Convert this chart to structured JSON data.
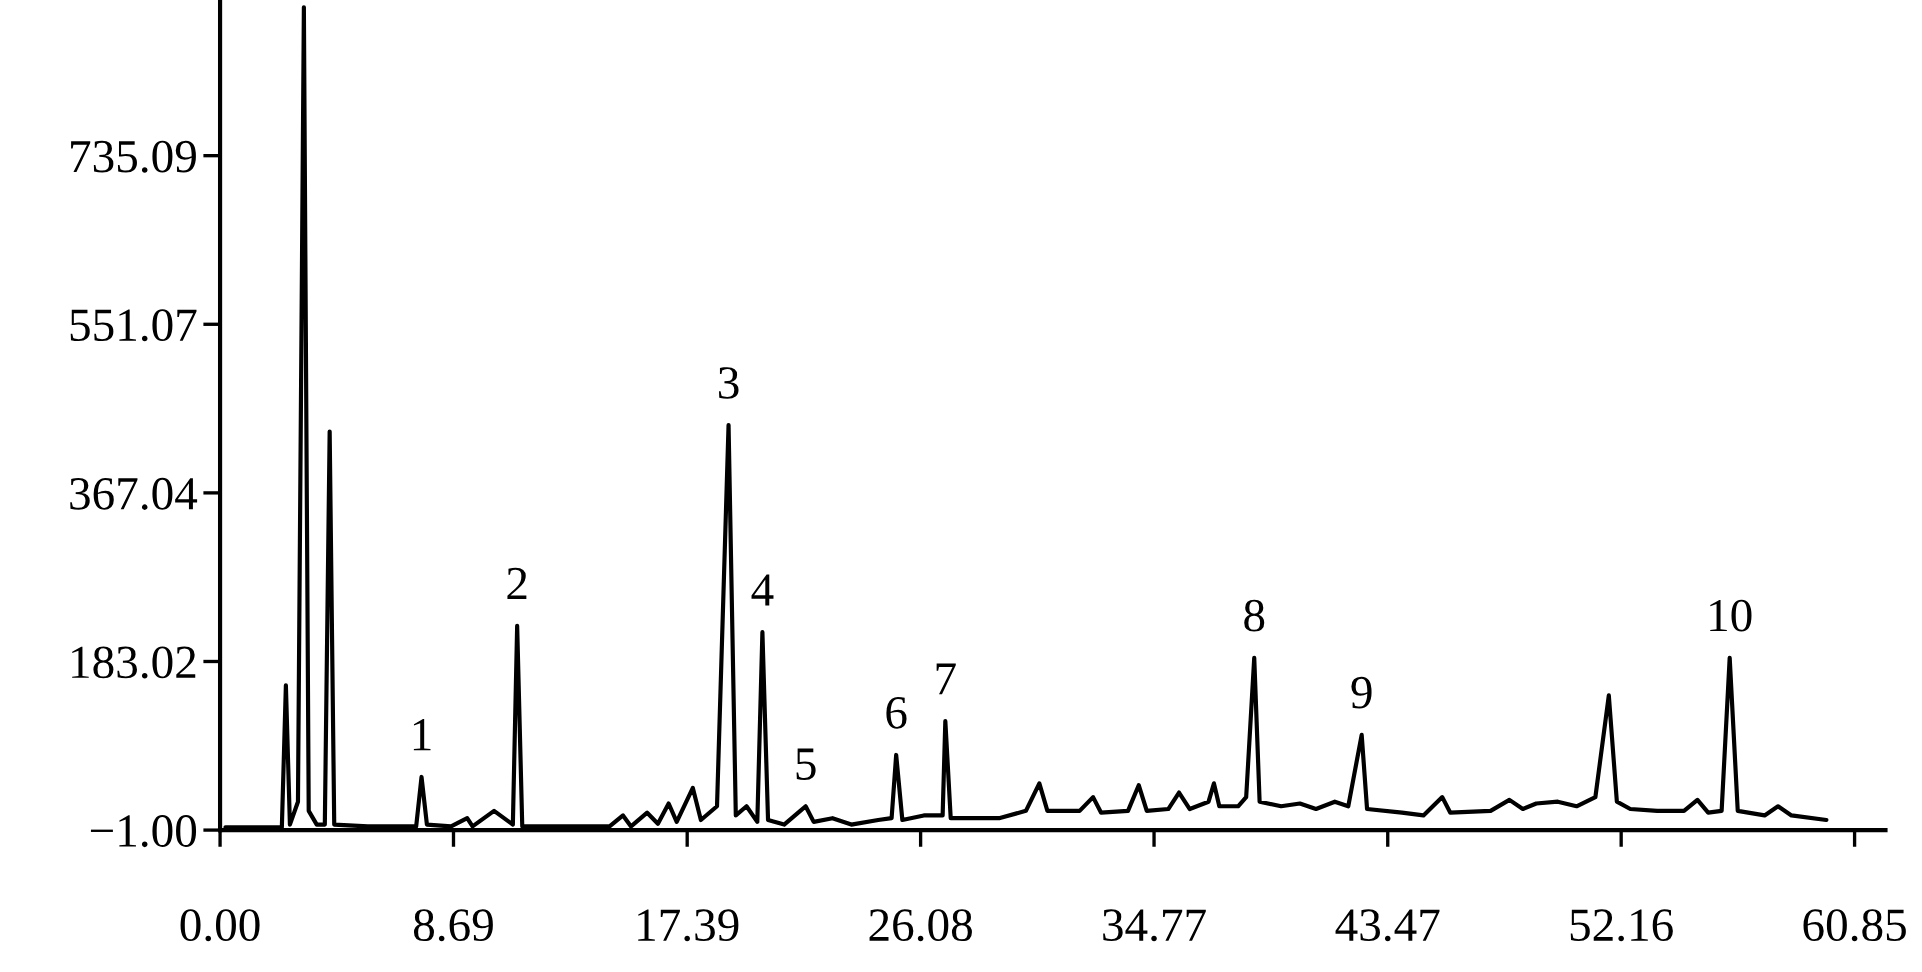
{
  "chart_data": {
    "type": "line",
    "series": [
      {
        "color": "#000000",
        "x": [
          0.2,
          2.3,
          2.45,
          2.6,
          2.9,
          3.12,
          3.3,
          3.6,
          3.9,
          4.08,
          4.25,
          5.5,
          7.3,
          7.5,
          7.7,
          8.6,
          9.2,
          9.4,
          10.2,
          10.9,
          11.06,
          11.25,
          14.5,
          15.0,
          15.3,
          15.9,
          16.3,
          16.7,
          17.0,
          17.6,
          17.9,
          18.5,
          18.93,
          19.2,
          19.6,
          20.0,
          20.19,
          20.4,
          21.0,
          21.6,
          21.8,
          22.1,
          22.8,
          23.5,
          24.5,
          25.0,
          25.17,
          25.4,
          26.2,
          26.9,
          27.0,
          27.2,
          29.0,
          30.0,
          30.5,
          30.8,
          32.0,
          32.5,
          32.8,
          33.8,
          34.2,
          34.5,
          35.3,
          35.7,
          36.1,
          36.8,
          37.0,
          37.2,
          37.9,
          38.2,
          38.5,
          38.7,
          39.5,
          40.2,
          40.8,
          41.5,
          42.0,
          42.5,
          42.7,
          44.0,
          44.8,
          45.5,
          45.8,
          47.3,
          48.0,
          48.5,
          49.0,
          49.8,
          50.5,
          51.2,
          51.7,
          52.0,
          52.5,
          53.5,
          54.5,
          55.0,
          55.4,
          55.9,
          56.2,
          56.5,
          57.5,
          58.0,
          58.5,
          59.8
        ],
        "values": [
          2,
          2,
          157,
          5,
          30,
          897,
          20,
          5,
          5,
          434,
          5,
          3,
          3,
          57,
          5,
          3,
          12,
          3,
          20,
          5,
          222,
          3,
          3,
          15,
          3,
          18,
          6,
          28,
          8,
          45,
          10,
          25,
          441,
          15,
          25,
          8,
          215,
          10,
          5,
          20,
          25,
          8,
          12,
          5,
          10,
          12,
          81,
          10,
          15,
          15,
          118,
          12,
          12,
          20,
          50,
          20,
          20,
          35,
          18,
          20,
          48,
          20,
          22,
          40,
          22,
          30,
          50,
          25,
          25,
          35,
          187,
          30,
          25,
          28,
          22,
          30,
          25,
          103,
          22,
          18,
          15,
          35,
          18,
          20,
          32,
          22,
          28,
          30,
          25,
          35,
          146,
          30,
          22,
          20,
          20,
          32,
          18,
          20,
          187,
          20,
          15,
          25,
          15,
          10
        ]
      }
    ],
    "xlim": [
      0,
      62.0
    ],
    "xticks": [
      {
        "value": 0,
        "label": "0.00"
      },
      8.69,
      17.39,
      26.08,
      34.77,
      43.47,
      52.16,
      60.85
    ],
    "ylim": [
      -1.0,
      905
    ],
    "yticks": [
      {
        "value": -1,
        "label": "−1.00"
      },
      183.02,
      367.04,
      551.07,
      735.09
    ],
    "grid": false,
    "legend": false,
    "marker": "none",
    "line_style": "solid",
    "annotations": [
      {
        "text": "1",
        "x": 7.5,
        "y": 57
      },
      {
        "text": "2",
        "x": 11.06,
        "y": 222
      },
      {
        "text": "3",
        "x": 18.93,
        "y": 441
      },
      {
        "text": "4",
        "x": 20.19,
        "y": 215
      },
      {
        "text": "5",
        "x": 21.8,
        "y": 25
      },
      {
        "text": "6",
        "x": 25.17,
        "y": 81
      },
      {
        "text": "7",
        "x": 27.0,
        "y": 118
      },
      {
        "text": "8",
        "x": 38.5,
        "y": 187
      },
      {
        "text": "9",
        "x": 42.5,
        "y": 103
      },
      {
        "text": "10",
        "x": 56.2,
        "y": 187
      }
    ]
  }
}
